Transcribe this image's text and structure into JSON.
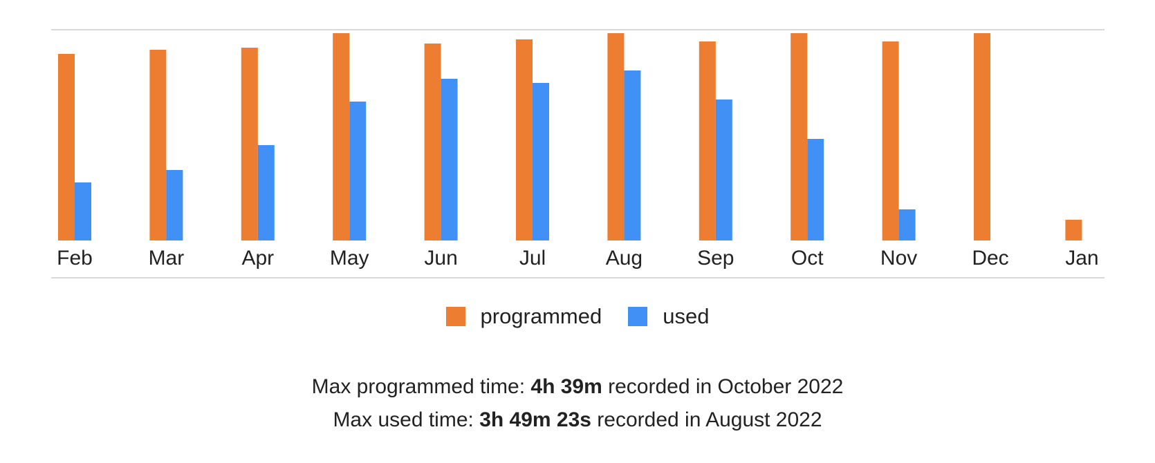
{
  "chart_data": {
    "type": "bar",
    "categories": [
      "Feb",
      "Mar",
      "Apr",
      "May",
      "Jun",
      "Jul",
      "Aug",
      "Sep",
      "Oct",
      "Nov",
      "Dec",
      "Jan"
    ],
    "series": [
      {
        "name": "programmed",
        "color": "#ED7D31",
        "values": [
          90,
          92,
          93,
          100,
          95,
          97,
          100,
          96,
          100,
          96,
          100,
          10
        ]
      },
      {
        "name": "used",
        "color": "#4090F5",
        "values": [
          28,
          34,
          46,
          67,
          78,
          76,
          82,
          68,
          49,
          15,
          0,
          0
        ]
      }
    ],
    "ylim": [
      0,
      100
    ],
    "grid": false,
    "legend_position": "bottom"
  },
  "legend": {
    "programmed_label": "programmed",
    "used_label": "used"
  },
  "summary": {
    "programmed_prefix": "Max programmed time: ",
    "programmed_value": "4h 39m",
    "programmed_suffix": " recorded in October 2022",
    "used_prefix": "Max used time: ",
    "used_value": "3h 49m 23s",
    "used_suffix": " recorded in August 2022"
  }
}
